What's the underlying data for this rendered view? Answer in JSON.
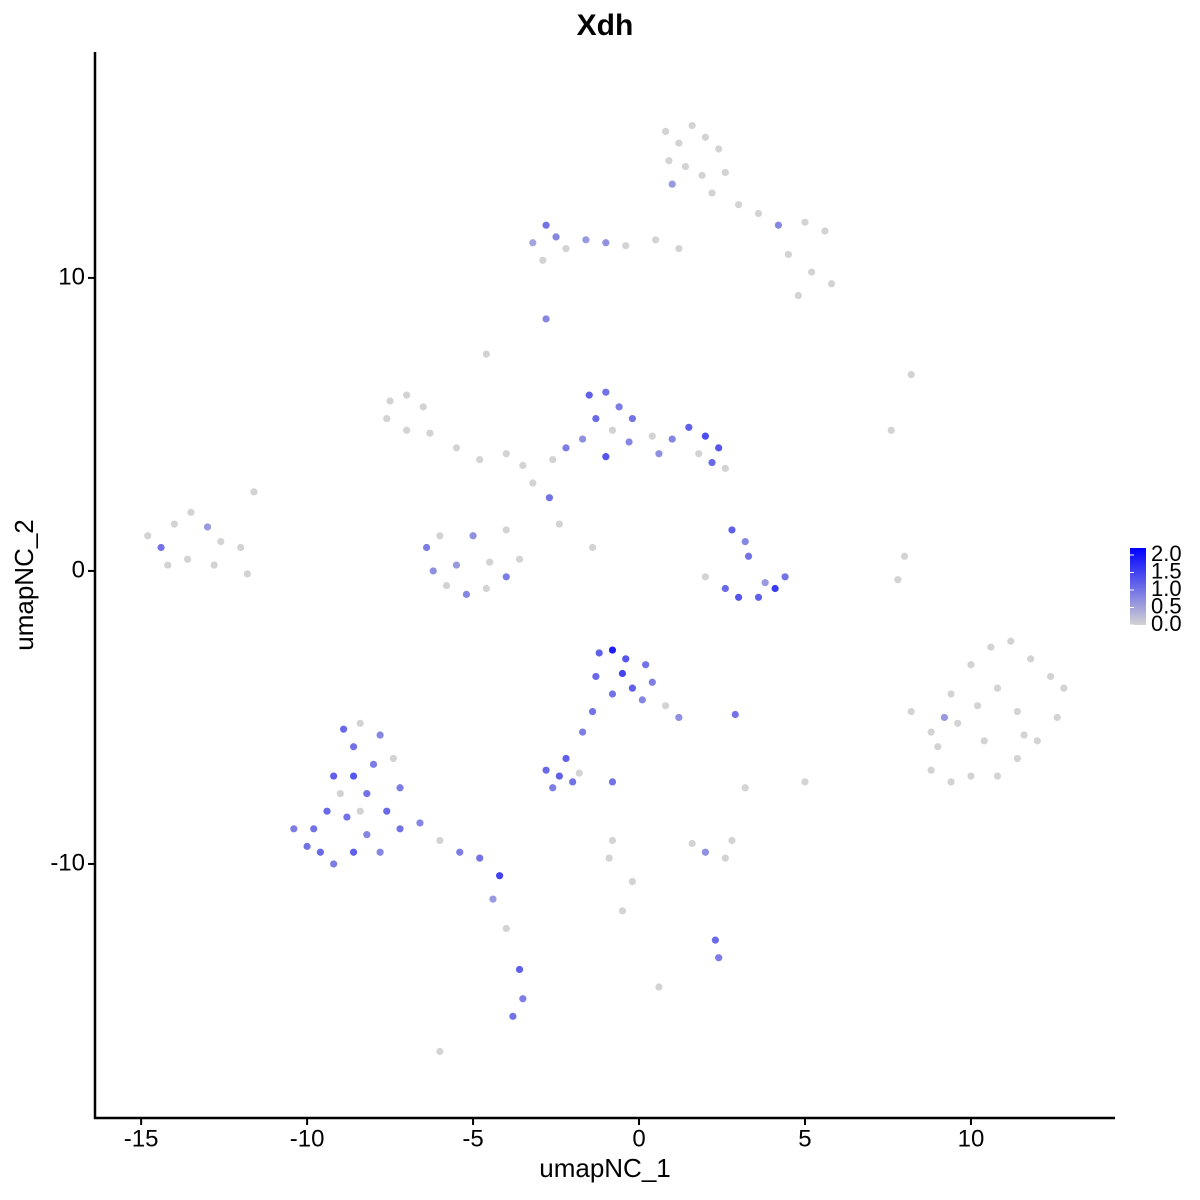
{
  "chart_data": {
    "type": "scatter",
    "title": "Xdh",
    "xlabel": "umapNC_1",
    "ylabel": "umapNC_2",
    "xlim": [
      -16.39,
      14.34
    ],
    "ylim": [
      -18.67,
      17.71
    ],
    "xticks": [
      -15,
      -10,
      -5,
      0,
      5,
      10
    ],
    "yticks": [
      -10,
      0,
      10
    ],
    "low_color": "#d3d3d3",
    "high_color": "#0000ff",
    "color_range": [
      0,
      2.2
    ],
    "colorbar_ticks": [
      {
        "value": 0,
        "label": "0.0"
      },
      0.5,
      {
        "value": 1,
        "label": "1.0"
      },
      1.5,
      {
        "value": 2,
        "label": "2.0"
      }
    ],
    "series": [
      {
        "name": "Xdh",
        "x": [
          0.8,
          1.2,
          1.6,
          2.0,
          2.4,
          0.9,
          1.4,
          1.9,
          2.6,
          1.0,
          2.2,
          3.0,
          3.6,
          4.2,
          5.0,
          5.6,
          4.5,
          5.2,
          5.8,
          4.8,
          -2.8,
          -2.5,
          -2.2,
          -1.6,
          -1.0,
          -0.4,
          0.5,
          1.2,
          -2.9,
          -3.2,
          -2.8,
          -4.6,
          8.2,
          7.6,
          -7.5,
          -7.0,
          -6.5,
          -7.6,
          -7.0,
          -6.3,
          -5.5,
          -4.8,
          -4.0,
          -3.5,
          -1.5,
          -1.0,
          -0.6,
          -1.3,
          -0.8,
          -0.3,
          -1.7,
          -2.2,
          -2.6,
          -1.0,
          0.4,
          1.0,
          1.5,
          2.0,
          2.4,
          2.2,
          1.8,
          2.6,
          0.6,
          -0.2,
          -6.4,
          -6.2,
          -5.8,
          -5.2,
          -4.6,
          -4.0,
          -3.6,
          -4.5,
          -5.5,
          -5.0,
          -2.7,
          -3.2,
          -2.4,
          -1.4,
          -4.0,
          -6.0,
          -14.8,
          -14.4,
          -14.0,
          -13.5,
          -13.0,
          -12.6,
          -13.6,
          -14.2,
          -12.8,
          -12.0,
          -11.8,
          -11.6,
          2.8,
          3.2,
          3.3,
          2.0,
          2.6,
          3.0,
          3.6,
          4.1,
          4.4,
          3.8,
          8.0,
          7.8,
          8.2,
          8.8,
          9.4,
          10.0,
          10.6,
          11.2,
          11.8,
          12.4,
          12.8,
          12.6,
          12.0,
          11.4,
          10.8,
          10.0,
          9.4,
          8.8,
          9.0,
          9.6,
          10.2,
          10.8,
          11.4,
          10.4,
          11.6,
          9.2,
          -1.2,
          -0.8,
          -0.4,
          0.2,
          0.4,
          -0.2,
          -0.8,
          -1.3,
          -0.5,
          0.1,
          0.8,
          1.2,
          -1.4,
          -1.7,
          -2.2,
          2.9,
          -2.8,
          -2.4,
          -2.0,
          -2.6,
          -1.8,
          -0.8,
          -9.8,
          -9.6,
          -9.2,
          -8.6,
          -8.2,
          -8.8,
          -9.4,
          -9.0,
          -8.6,
          -8.2,
          -8.0,
          -8.6,
          -8.9,
          -8.4,
          -7.8,
          -7.4,
          -7.2,
          -7.6,
          -7.8,
          -10.4,
          -10.0,
          -9.2,
          -7.2,
          -8.4,
          -6.6,
          -6.0,
          -5.4,
          -4.8,
          -4.2,
          -4.4,
          -4.0,
          -3.6,
          -3.5,
          -3.8,
          -6.0,
          0.6,
          -0.5,
          -0.2,
          -0.8,
          -0.9,
          2.0,
          2.6,
          2.8,
          1.6,
          2.3,
          2.4,
          3.2,
          5.0
        ],
        "y": [
          15.0,
          14.6,
          15.2,
          14.8,
          14.4,
          14.0,
          13.8,
          13.5,
          13.6,
          13.2,
          12.9,
          12.5,
          12.2,
          11.8,
          11.9,
          11.6,
          10.8,
          10.2,
          9.8,
          9.4,
          11.8,
          11.4,
          11.0,
          11.3,
          11.2,
          11.1,
          11.3,
          11.0,
          10.6,
          11.2,
          8.6,
          7.4,
          6.7,
          4.8,
          5.8,
          6.0,
          5.6,
          5.2,
          4.8,
          4.7,
          4.2,
          3.8,
          4.0,
          3.6,
          6.0,
          6.1,
          5.6,
          5.2,
          4.8,
          4.4,
          4.5,
          4.2,
          3.8,
          3.9,
          4.6,
          4.5,
          4.9,
          4.6,
          4.2,
          3.7,
          4.0,
          3.5,
          4.0,
          5.2,
          0.8,
          0.0,
          -0.5,
          -0.8,
          -0.6,
          -0.2,
          0.4,
          0.3,
          0.2,
          1.2,
          2.5,
          3.0,
          1.6,
          0.8,
          1.4,
          1.2,
          1.2,
          0.8,
          1.6,
          2.0,
          1.5,
          1.0,
          0.4,
          0.2,
          0.2,
          0.8,
          -0.1,
          2.7,
          1.4,
          1.0,
          0.5,
          -0.2,
          -0.6,
          -0.9,
          -0.9,
          -0.6,
          -0.2,
          -0.4,
          0.5,
          -0.3,
          -4.8,
          -5.5,
          -4.2,
          -3.2,
          -2.6,
          -2.4,
          -3.0,
          -3.6,
          -4.0,
          -5.0,
          -5.8,
          -6.4,
          -7.0,
          -7.0,
          -7.2,
          -6.8,
          -6.0,
          -5.2,
          -4.6,
          -4.0,
          -4.8,
          -5.8,
          -5.6,
          -5.0,
          -2.8,
          -2.7,
          -3.0,
          -3.2,
          -3.8,
          -4.0,
          -4.2,
          -3.6,
          -3.5,
          -4.4,
          -4.6,
          -5.0,
          -4.8,
          -5.5,
          -6.4,
          -4.9,
          -6.8,
          -7.0,
          -7.2,
          -7.4,
          -6.9,
          -7.2,
          -8.8,
          -9.6,
          -10.0,
          -9.6,
          -9.0,
          -8.4,
          -8.2,
          -7.6,
          -7.0,
          -7.6,
          -6.6,
          -6.0,
          -5.4,
          -5.2,
          -5.6,
          -6.4,
          -7.4,
          -8.2,
          -9.6,
          -8.8,
          -9.4,
          -7.0,
          -8.8,
          -8.2,
          -8.6,
          -9.2,
          -9.6,
          -9.8,
          -10.4,
          -11.2,
          -12.2,
          -13.6,
          -14.6,
          -15.2,
          -16.4,
          -14.2,
          -11.6,
          -10.6,
          -9.2,
          -9.8,
          -9.6,
          -9.8,
          -9.2,
          -9.3,
          -12.6,
          -13.2,
          -7.4,
          -7.2
        ],
        "values": [
          0,
          0,
          0,
          0,
          0,
          0,
          0,
          0,
          0,
          0.6,
          0,
          0,
          0,
          0.8,
          0,
          0,
          0,
          0,
          0,
          0,
          1.0,
          0.8,
          0,
          0.6,
          0.7,
          0,
          0,
          0,
          0,
          0.5,
          0.8,
          0,
          0,
          0,
          0,
          0,
          0,
          0,
          0,
          0,
          0,
          0,
          0,
          0,
          1.2,
          1.0,
          0.9,
          1.1,
          0,
          0.8,
          0.7,
          0.9,
          0,
          1.3,
          0,
          0.8,
          1.2,
          1.4,
          1.3,
          1.1,
          0,
          0,
          0.7,
          1.0,
          0.9,
          0.7,
          0,
          0.8,
          0,
          0.9,
          0,
          0,
          0.6,
          0.7,
          1.0,
          0,
          0,
          0,
          0,
          0,
          0,
          1.0,
          0,
          0,
          0.6,
          0,
          0,
          0,
          0,
          0,
          0,
          0,
          1.2,
          0.8,
          1.0,
          0,
          1.1,
          1.3,
          1.2,
          1.6,
          1.0,
          0.6,
          0,
          0,
          0,
          0,
          0,
          0,
          0,
          0,
          0,
          0,
          0,
          0,
          0,
          0,
          0,
          0,
          0,
          0,
          0,
          0,
          0,
          0,
          0,
          0,
          0,
          0.6,
          1.2,
          1.9,
          1.3,
          1.0,
          0.9,
          1.2,
          1.0,
          1.1,
          1.5,
          0.8,
          0,
          0.7,
          1.0,
          0.9,
          1.2,
          1.0,
          1.1,
          1.2,
          1.0,
          0.9,
          0,
          1.0,
          1.0,
          1.1,
          0.9,
          1.2,
          0.8,
          1.0,
          1.1,
          0,
          1.3,
          1.0,
          0.9,
          1.0,
          1.1,
          0,
          0.8,
          0,
          0.9,
          1.1,
          0.8,
          0.9,
          1.0,
          1.2,
          1.0,
          0,
          0.8,
          0,
          0.9,
          1.0,
          1.5,
          0.6,
          0,
          1.2,
          0.9,
          1.0,
          0,
          0,
          0,
          0,
          0,
          0,
          0.7,
          0,
          0,
          0,
          1.1,
          0.9,
          0,
          0
        ]
      }
    ]
  }
}
